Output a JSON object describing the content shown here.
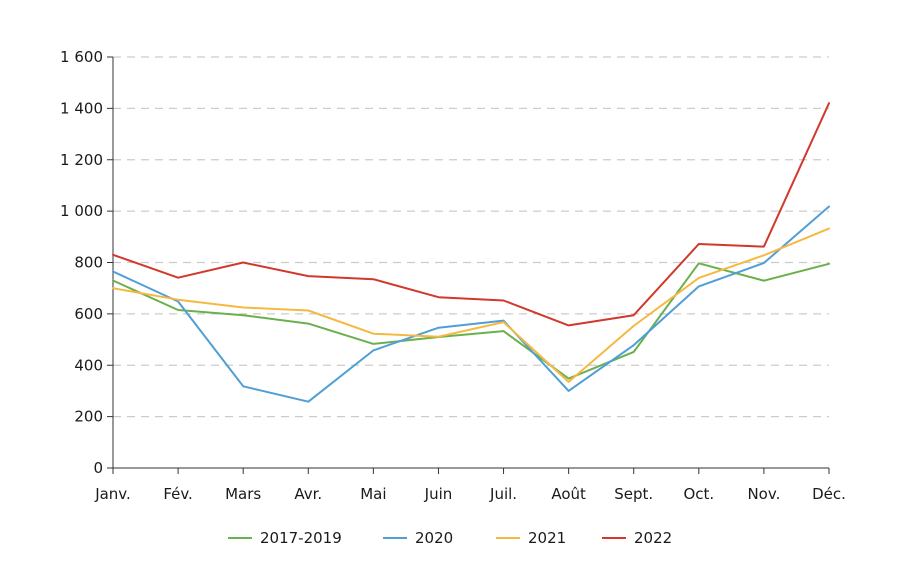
{
  "chart_data": {
    "type": "line",
    "title": "",
    "xlabel": "",
    "ylabel": "",
    "categories": [
      "Janv.",
      "Fév.",
      "Mars",
      "Avr.",
      "Mai",
      "Juin",
      "Juil.",
      "Août",
      "Sept.",
      "Oct.",
      "Nov.",
      "Déc."
    ],
    "ylim": [
      0,
      1600
    ],
    "yticks": [
      0,
      200,
      400,
      600,
      800,
      1000,
      1200,
      1400,
      1600
    ],
    "ytick_labels": [
      "0",
      "200",
      "400",
      "600",
      "800",
      "1 000",
      "1 200",
      "1 400",
      "1 600"
    ],
    "grid": "horizontal dashed",
    "legend_position": "bottom",
    "series": [
      {
        "name": "2017-2019",
        "color": "#6ab04c",
        "values": [
          730,
          615,
          595,
          562,
          483,
          510,
          533,
          348,
          452,
          797,
          729,
          795
        ]
      },
      {
        "name": "2020",
        "color": "#4f9fd6",
        "values": [
          765,
          648,
          318,
          258,
          458,
          546,
          574,
          300,
          478,
          707,
          798,
          1018
        ]
      },
      {
        "name": "2021",
        "color": "#f5b942",
        "values": [
          700,
          655,
          625,
          613,
          523,
          511,
          568,
          335,
          553,
          740,
          828,
          932
        ]
      },
      {
        "name": "2022",
        "color": "#d0392b",
        "values": [
          830,
          741,
          800,
          747,
          735,
          665,
          652,
          555,
          595,
          872,
          862,
          1420
        ]
      }
    ]
  }
}
